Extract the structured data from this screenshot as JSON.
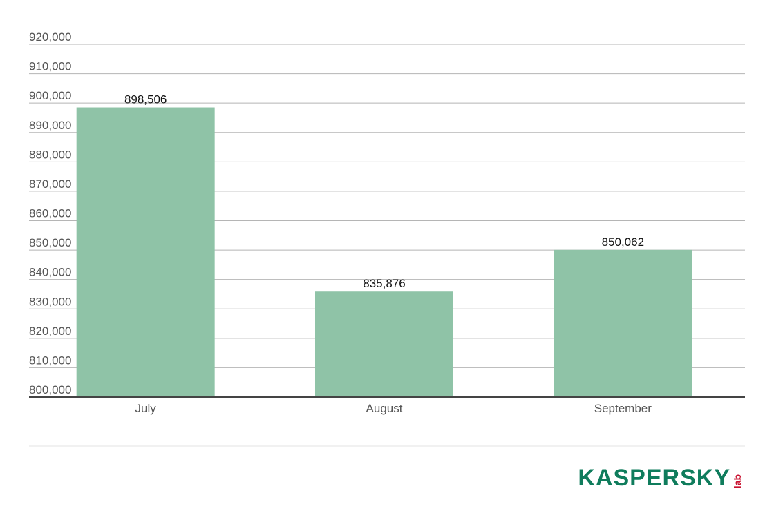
{
  "chart_data": {
    "type": "bar",
    "categories": [
      "July",
      "August",
      "September"
    ],
    "values": [
      898506,
      835876,
      850062
    ],
    "data_labels": [
      "898,506",
      "835,876",
      "850,062"
    ],
    "ylim": [
      800000,
      920000
    ],
    "yticks": [
      800000,
      810000,
      820000,
      830000,
      840000,
      850000,
      860000,
      870000,
      880000,
      890000,
      900000,
      910000,
      920000
    ],
    "ytick_labels": [
      "800,000",
      "810,000",
      "820,000",
      "830,000",
      "840,000",
      "850,000",
      "860,000",
      "870,000",
      "880,000",
      "890,000",
      "900,000",
      "910,000",
      "920,000"
    ],
    "grid": true,
    "legend": "none",
    "bar_color": "#8fc3a7"
  },
  "logo": {
    "text": "KASPERSKY",
    "sub": "lab",
    "color": "#0f7c5c",
    "accent": "#c8102e"
  }
}
